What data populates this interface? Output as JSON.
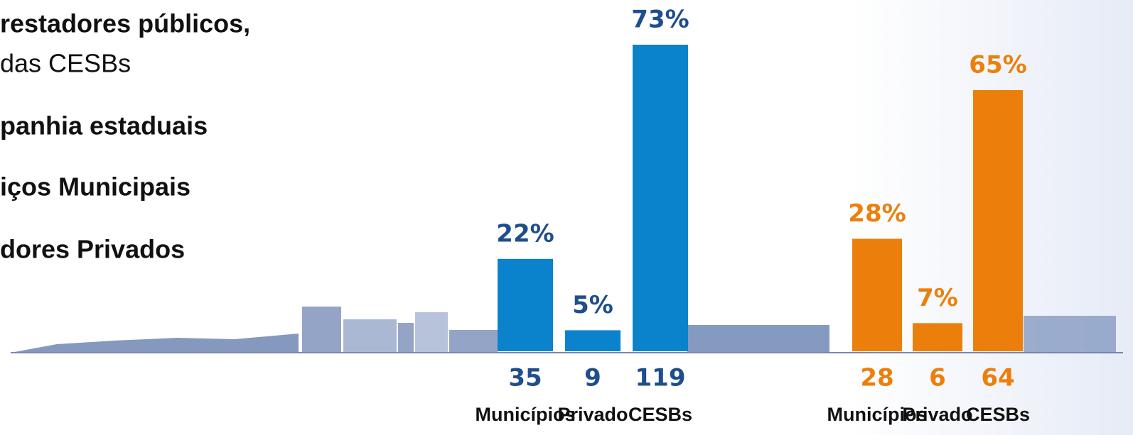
{
  "text_lines": [
    {
      "text": "restadores públicos,",
      "bold": true
    },
    {
      "text": "das CESBs",
      "bold": false
    },
    {
      "text": "panhia estaduais",
      "bold": true
    },
    {
      "text": "iços Municipais",
      "bold": true
    },
    {
      "text": "dores Privados",
      "bold": true
    }
  ],
  "chart_data": [
    {
      "type": "bar",
      "categories": [
        "Municípios",
        "Privado",
        "CESBs"
      ],
      "values": [
        22,
        5,
        73
      ],
      "value_labels": [
        "22%",
        "5%",
        "73%"
      ],
      "counts": [
        35,
        9,
        119
      ],
      "color": "#0a82cc",
      "label_color": "#1f4e8c"
    },
    {
      "type": "bar",
      "categories": [
        "Municípios",
        "Privado",
        "CESBs"
      ],
      "values": [
        28,
        7,
        65
      ],
      "value_labels": [
        "28%",
        "7%",
        "65%"
      ],
      "counts": [
        28,
        6,
        64
      ],
      "color": "#ec7f0b",
      "label_color": "#ec7f0b"
    }
  ]
}
